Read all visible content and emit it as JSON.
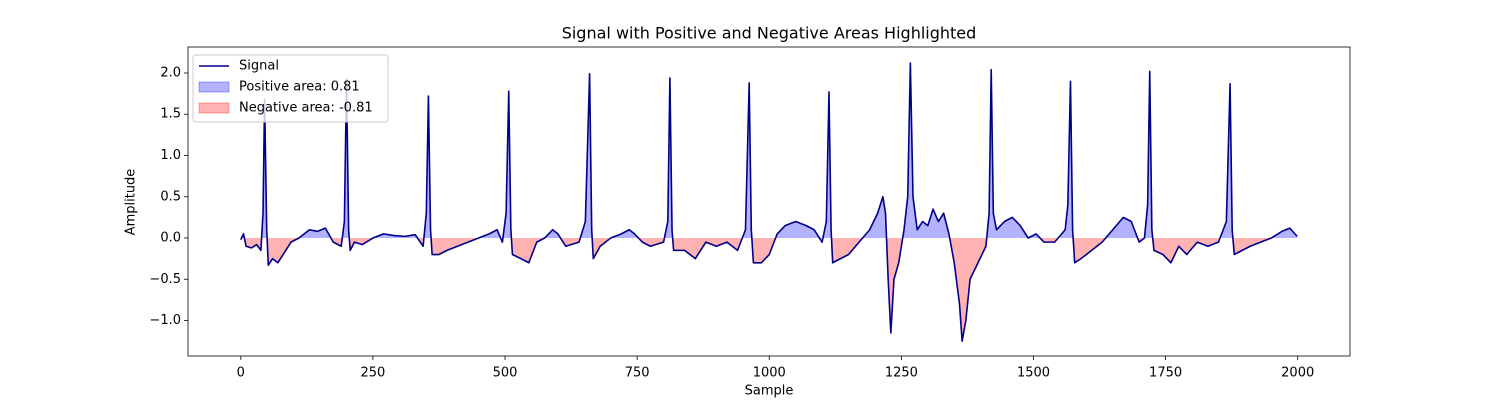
{
  "chart_data": {
    "type": "line",
    "title": "Signal with Positive and Negative Areas Highlighted",
    "xlabel": "Sample",
    "ylabel": "Amplitude",
    "x": [
      0,
      5,
      10,
      20,
      30,
      38,
      42,
      45,
      49,
      52,
      60,
      70,
      80,
      95,
      110,
      120,
      130,
      145,
      160,
      175,
      190,
      196,
      200,
      204,
      207,
      215,
      230,
      250,
      270,
      290,
      310,
      330,
      345,
      351,
      355,
      359,
      362,
      375,
      390,
      410,
      430,
      450,
      470,
      485,
      495,
      502,
      507,
      511,
      514,
      530,
      545,
      560,
      575,
      590,
      600,
      615,
      640,
      652,
      660,
      664,
      667,
      680,
      700,
      720,
      735,
      745,
      760,
      775,
      800,
      808,
      812,
      816,
      819,
      840,
      860,
      880,
      900,
      920,
      940,
      955,
      962,
      966,
      970,
      985,
      1000,
      1015,
      1030,
      1050,
      1070,
      1085,
      1100,
      1108,
      1113,
      1117,
      1120,
      1135,
      1150,
      1170,
      1190,
      1205,
      1215,
      1220,
      1225,
      1230,
      1236,
      1245,
      1255,
      1262,
      1267,
      1272,
      1280,
      1290,
      1300,
      1310,
      1320,
      1330,
      1340,
      1350,
      1360,
      1365,
      1372,
      1380,
      1395,
      1410,
      1416,
      1420,
      1424,
      1430,
      1445,
      1460,
      1475,
      1490,
      1505,
      1520,
      1540,
      1560,
      1565,
      1570,
      1574,
      1578,
      1590,
      1610,
      1630,
      1650,
      1670,
      1685,
      1700,
      1710,
      1716,
      1720,
      1724,
      1728,
      1745,
      1760,
      1775,
      1790,
      1810,
      1830,
      1850,
      1865,
      1872,
      1876,
      1880,
      1895,
      1910,
      1930,
      1950,
      1970,
      1985,
      1999
    ],
    "series": [
      {
        "name": "Signal",
        "color": "#00008b",
        "values": [
          -0.02,
          0.05,
          -0.1,
          -0.12,
          -0.08,
          -0.15,
          0.3,
          1.68,
          0.1,
          -0.33,
          -0.25,
          -0.3,
          -0.2,
          -0.05,
          0.0,
          0.05,
          0.1,
          0.08,
          0.12,
          -0.05,
          -0.1,
          0.2,
          1.93,
          0.1,
          -0.15,
          -0.05,
          -0.08,
          0.0,
          0.05,
          0.03,
          0.02,
          0.04,
          -0.1,
          0.3,
          1.72,
          0.1,
          -0.2,
          -0.2,
          -0.15,
          -0.1,
          -0.05,
          0.0,
          0.05,
          0.1,
          -0.05,
          0.3,
          1.78,
          0.1,
          -0.2,
          -0.25,
          -0.3,
          -0.05,
          0.0,
          0.1,
          0.05,
          -0.1,
          -0.05,
          0.2,
          1.99,
          0.1,
          -0.25,
          -0.1,
          0.0,
          0.05,
          0.1,
          0.05,
          -0.05,
          -0.1,
          -0.05,
          0.2,
          1.94,
          0.1,
          -0.15,
          -0.15,
          -0.25,
          -0.05,
          -0.1,
          -0.05,
          -0.15,
          0.1,
          1.88,
          0.1,
          -0.3,
          -0.3,
          -0.2,
          0.05,
          0.15,
          0.2,
          0.15,
          0.1,
          -0.05,
          0.2,
          1.77,
          0.1,
          -0.3,
          -0.25,
          -0.2,
          -0.05,
          0.1,
          0.3,
          0.5,
          0.3,
          -0.5,
          -1.15,
          -0.5,
          -0.3,
          0.1,
          0.5,
          2.12,
          0.5,
          0.1,
          0.2,
          0.15,
          0.35,
          0.2,
          0.3,
          0.05,
          -0.3,
          -0.8,
          -1.25,
          -1.0,
          -0.5,
          -0.3,
          -0.1,
          0.3,
          2.04,
          0.3,
          0.1,
          0.2,
          0.25,
          0.15,
          0.0,
          0.05,
          -0.05,
          -0.05,
          0.1,
          0.4,
          1.9,
          0.1,
          -0.3,
          -0.25,
          -0.15,
          -0.05,
          0.1,
          0.25,
          0.2,
          -0.05,
          0.0,
          0.4,
          2.02,
          0.1,
          -0.15,
          -0.2,
          -0.3,
          -0.1,
          -0.2,
          -0.05,
          -0.1,
          -0.05,
          0.2,
          1.87,
          0.1,
          -0.2,
          -0.15,
          -0.1,
          -0.05,
          0.0,
          0.08,
          0.12,
          0.02
        ]
      }
    ],
    "fills": [
      {
        "name": "Positive area: 0.81",
        "color": "#0000ff",
        "alpha": 0.3,
        "side": "positive"
      },
      {
        "name": "Negative area: -0.81",
        "color": "#ff0000",
        "alpha": 0.3,
        "side": "negative"
      }
    ],
    "xlim": [
      -99.95,
      2098.95
    ],
    "ylim": [
      -1.43,
      2.315
    ],
    "xticks": [
      0,
      250,
      500,
      750,
      1000,
      1250,
      1500,
      1750,
      2000
    ],
    "yticks": [
      {
        "value": -1,
        "label": "−1.0"
      },
      {
        "value": -0.5,
        "label": "−0.5"
      },
      {
        "value": 0,
        "label": "0.0"
      },
      0.5,
      {
        "value": 1,
        "label": "1.0"
      },
      1.5,
      {
        "value": 2,
        "label": "2.0"
      }
    ],
    "legend": "upper left"
  }
}
